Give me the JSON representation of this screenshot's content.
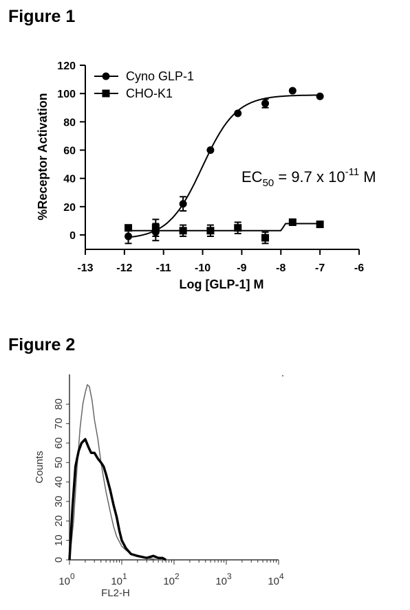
{
  "figures": {
    "fig1_title": "Figure 1",
    "fig2_title": "Figure 2"
  },
  "chart_data": [
    {
      "type": "scatter",
      "title": "",
      "xlabel": "Log [GLP-1] M",
      "ylabel": "%Receptor Activation",
      "xlim": [
        -13,
        -6
      ],
      "ylim": [
        -10,
        120
      ],
      "xticks": [
        "-13",
        "-12",
        "-11",
        "-10",
        "-9",
        "-8",
        "-7",
        "-6"
      ],
      "yticks": [
        "0",
        "20",
        "40",
        "60",
        "80",
        "100",
        "120"
      ],
      "legend_position": "top-left",
      "annotation": {
        "prefix": "EC",
        "sub": "50",
        "middle": " = 9.7 x 10",
        "sup": "-11",
        "suffix": " M"
      },
      "series": [
        {
          "name": "Cyno GLP-1",
          "marker": "circle",
          "x": [
            -11.9,
            -11.2,
            -10.5,
            -9.8,
            -9.1,
            -8.4,
            -7.7,
            -7.0
          ],
          "y": [
            -1,
            2,
            22,
            60,
            86,
            93,
            102,
            98
          ],
          "err": [
            5,
            6,
            5,
            0,
            0,
            3,
            0,
            0
          ],
          "fit": {
            "type": "sigmoid",
            "bottom": -3,
            "top": 99,
            "log_ec50": -10.01,
            "hill": 1.0
          }
        },
        {
          "name": "CHO-K1",
          "marker": "square",
          "x": [
            -11.9,
            -11.2,
            -10.5,
            -9.8,
            -9.1,
            -8.4,
            -7.7,
            -7.0
          ],
          "y": [
            5,
            5,
            3,
            3,
            5,
            -2,
            9,
            7.5
          ],
          "err": [
            0,
            6,
            4,
            4,
            4,
            4,
            0,
            0
          ],
          "fit": {
            "type": "step",
            "low": 3,
            "high": 8,
            "x_step": -8.0
          }
        }
      ]
    },
    {
      "type": "area",
      "title": "",
      "xlabel": "FL2-H",
      "ylabel": "Counts",
      "x_scale": "log",
      "xlim": [
        1,
        10000
      ],
      "ylim": [
        0,
        90
      ],
      "xticks": [
        {
          "base": "10",
          "exp": "0"
        },
        {
          "base": "10",
          "exp": "1"
        },
        {
          "base": "10",
          "exp": "2"
        },
        {
          "base": "10",
          "exp": "3"
        },
        {
          "base": "10",
          "exp": "4"
        }
      ],
      "yticks": [
        "0",
        "10",
        "20",
        "30",
        "40",
        "50",
        "60",
        "70",
        "80"
      ],
      "series": [
        {
          "style": "thin",
          "x": [
            1.0,
            1.2,
            1.4,
            1.6,
            1.8,
            2.0,
            2.2,
            2.4,
            2.7,
            3.0,
            3.5,
            4.0,
            4.5,
            5.0,
            6.0,
            7.0,
            8.0,
            10.0,
            12.0,
            15.0,
            20.0,
            30.0,
            50.0,
            80.0
          ],
          "y": [
            0,
            20,
            48,
            68,
            80,
            86,
            90,
            89,
            82,
            72,
            62,
            50,
            42,
            35,
            25,
            17,
            12,
            7,
            5,
            3,
            2,
            1,
            0,
            0
          ]
        },
        {
          "style": "thick",
          "x": [
            1.0,
            1.15,
            1.3,
            1.5,
            1.7,
            2.0,
            2.3,
            2.6,
            3.0,
            3.5,
            4.0,
            4.5,
            5.0,
            6.0,
            7.0,
            8.0,
            9.0,
            10.0,
            12.0,
            15.0,
            20.0,
            30.0,
            40.0,
            50.0,
            60.0,
            70.0
          ],
          "y": [
            0,
            28,
            48,
            56,
            60,
            62,
            58,
            55,
            55,
            52,
            50,
            48,
            44,
            36,
            28,
            22,
            15,
            10,
            6,
            3,
            2,
            1,
            2,
            1,
            1,
            0
          ]
        }
      ]
    }
  ]
}
